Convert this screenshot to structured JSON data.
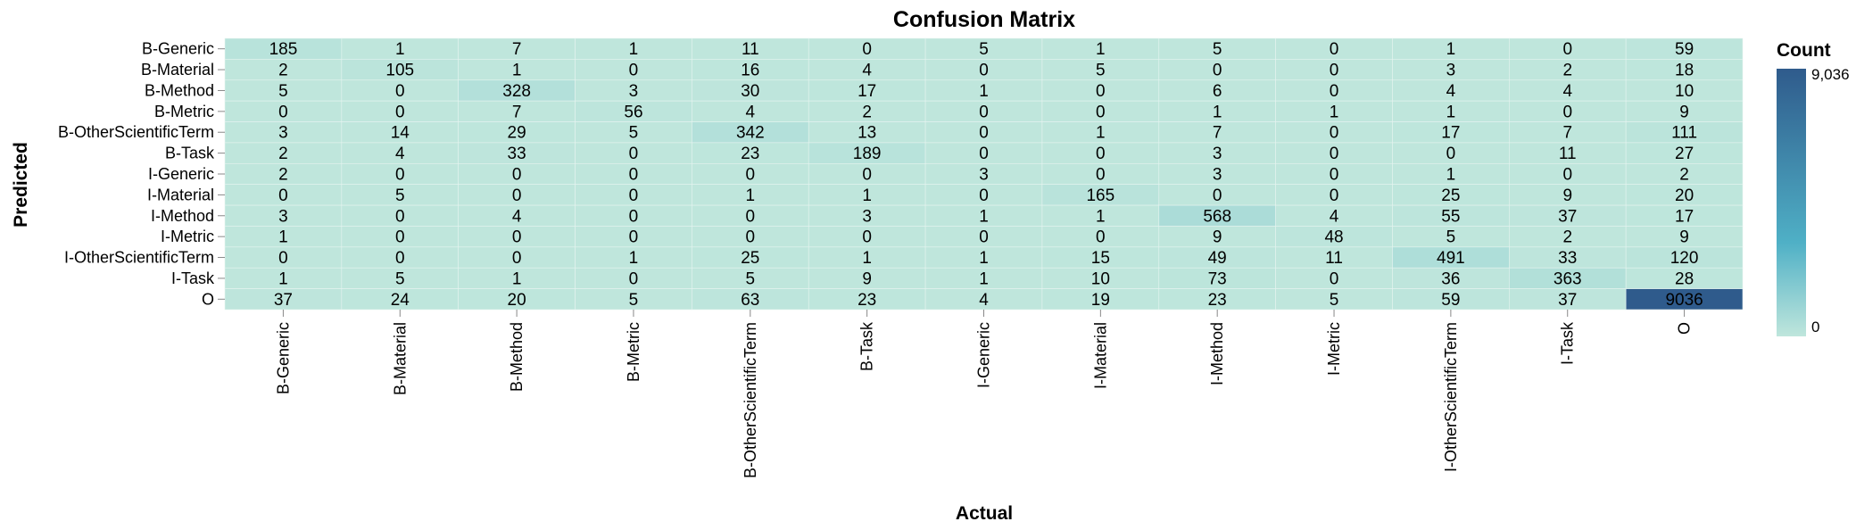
{
  "chart_data": {
    "type": "heatmap",
    "title": "Confusion Matrix",
    "xlabel": "Actual",
    "ylabel": "Predicted",
    "legend_title": "Count",
    "legend_position": "right",
    "legend_range": [
      0,
      9036
    ],
    "legend_min_label": "0",
    "legend_max_label": "9,036",
    "color_scale": {
      "low": "#bfe6dc",
      "mid": "#4fb0c6",
      "high": "#2f5b8c"
    },
    "x_categories": [
      "B-Generic",
      "B-Material",
      "B-Method",
      "B-Metric",
      "B-OtherScientificTerm",
      "B-Task",
      "I-Generic",
      "I-Material",
      "I-Method",
      "I-Metric",
      "I-OtherScientificTerm",
      "I-Task",
      "O"
    ],
    "y_categories": [
      "B-Generic",
      "B-Material",
      "B-Method",
      "B-Metric",
      "B-OtherScientificTerm",
      "B-Task",
      "I-Generic",
      "I-Material",
      "I-Method",
      "I-Metric",
      "I-OtherScientificTerm",
      "I-Task",
      "O"
    ],
    "values": [
      [
        185,
        1,
        7,
        1,
        11,
        0,
        5,
        1,
        5,
        0,
        1,
        0,
        59
      ],
      [
        2,
        105,
        1,
        0,
        16,
        4,
        0,
        5,
        0,
        0,
        3,
        2,
        18
      ],
      [
        5,
        0,
        328,
        3,
        30,
        17,
        1,
        0,
        6,
        0,
        4,
        4,
        10
      ],
      [
        0,
        0,
        7,
        56,
        4,
        2,
        0,
        0,
        1,
        1,
        1,
        0,
        9
      ],
      [
        3,
        14,
        29,
        5,
        342,
        13,
        0,
        1,
        7,
        0,
        17,
        7,
        111
      ],
      [
        2,
        4,
        33,
        0,
        23,
        189,
        0,
        0,
        3,
        0,
        0,
        11,
        27
      ],
      [
        2,
        0,
        0,
        0,
        0,
        0,
        3,
        0,
        3,
        0,
        1,
        0,
        2
      ],
      [
        0,
        5,
        0,
        0,
        1,
        1,
        0,
        165,
        0,
        0,
        25,
        9,
        20
      ],
      [
        3,
        0,
        4,
        0,
        0,
        3,
        1,
        1,
        568,
        4,
        55,
        37,
        17
      ],
      [
        1,
        0,
        0,
        0,
        0,
        0,
        0,
        0,
        9,
        48,
        5,
        2,
        9
      ],
      [
        0,
        0,
        0,
        1,
        25,
        1,
        1,
        15,
        49,
        11,
        491,
        33,
        120
      ],
      [
        1,
        5,
        1,
        0,
        5,
        9,
        1,
        10,
        73,
        0,
        36,
        363,
        28
      ],
      [
        37,
        24,
        20,
        5,
        63,
        23,
        4,
        19,
        23,
        5,
        59,
        37,
        9036
      ]
    ]
  }
}
